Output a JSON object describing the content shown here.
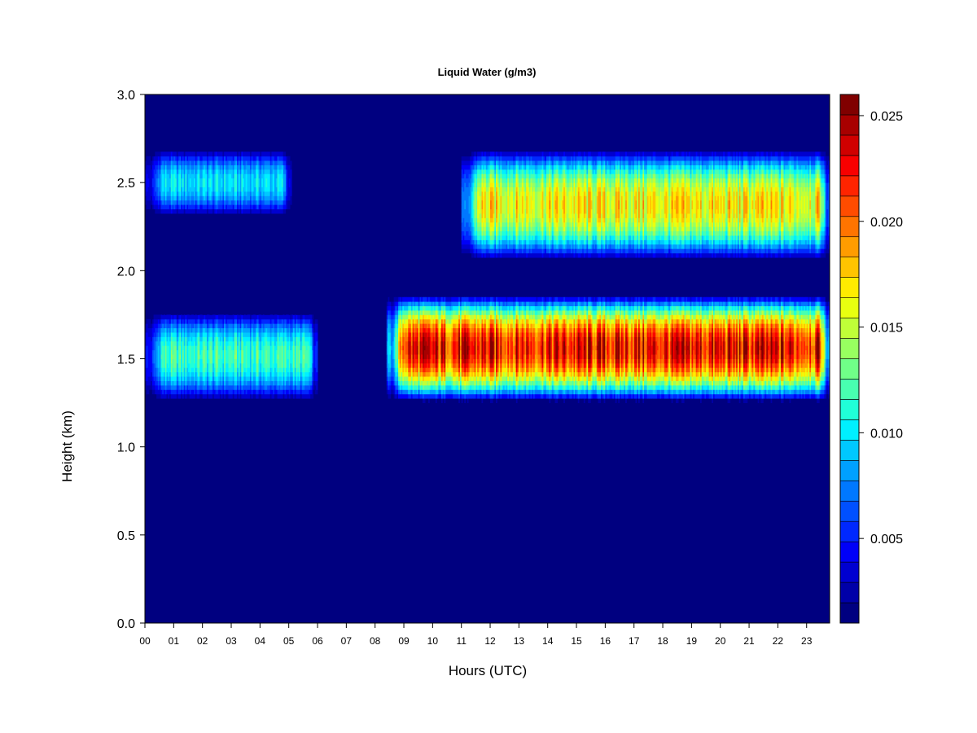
{
  "chart_data": {
    "type": "heatmap",
    "title": "Liquid Water (g/m3)",
    "xlabel": "Hours (UTC)",
    "ylabel": "Height (km)",
    "xlim": [
      0,
      23.8
    ],
    "ylim": [
      0,
      3.0
    ],
    "x_ticks": [
      "00",
      "01",
      "02",
      "03",
      "04",
      "05",
      "06",
      "07",
      "08",
      "09",
      "10",
      "11",
      "12",
      "13",
      "14",
      "15",
      "16",
      "17",
      "18",
      "19",
      "20",
      "21",
      "22",
      "23"
    ],
    "y_ticks": [
      "0.0",
      "0.5",
      "1.0",
      "1.5",
      "2.0",
      "2.5",
      "3.0"
    ],
    "colorbar": {
      "min": 0.001,
      "max": 0.026,
      "levels": 25,
      "tick_values": [
        0.005,
        0.01,
        0.015,
        0.02,
        0.025
      ],
      "tick_labels": [
        "0.005",
        "0.010",
        "0.015",
        "0.020",
        "0.025"
      ],
      "colors": [
        "#000080",
        "#0000a8",
        "#0000d0",
        "#0000f8",
        "#0028ff",
        "#0050ff",
        "#0078ff",
        "#00a0ff",
        "#00c8ff",
        "#00f0ff",
        "#20ffd8",
        "#48ffb0",
        "#70ff88",
        "#98ff60",
        "#c0ff38",
        "#e8ff10",
        "#ffec00",
        "#ffc400",
        "#ff9c00",
        "#ff7400",
        "#ff4c00",
        "#ff2400",
        "#f80000",
        "#d00000",
        "#a80000",
        "#800000"
      ]
    },
    "cloud_layers": [
      {
        "name": "lower layer, 00-06 UTC",
        "x_range": [
          0,
          6.0
        ],
        "base_km": 1.25,
        "top_km": 1.78,
        "peak_g_m3": 0.012
      },
      {
        "name": "lower layer, 08.4-24 UTC",
        "x_range": [
          8.4,
          23.8
        ],
        "base_km": 1.25,
        "top_km": 1.87,
        "peak_g_m3": 0.023
      },
      {
        "name": "upper layer, 00-05 UTC",
        "x_range": [
          0,
          5.1
        ],
        "base_km": 2.3,
        "top_km": 2.7,
        "peak_g_m3": 0.01
      },
      {
        "name": "upper layer, 11-24 UTC",
        "x_range": [
          11.0,
          23.8
        ],
        "base_km": 2.05,
        "top_km": 2.7,
        "peak_g_m3": 0.017
      }
    ]
  }
}
